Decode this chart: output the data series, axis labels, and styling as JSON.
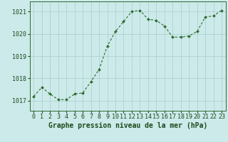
{
  "x": [
    0,
    1,
    2,
    3,
    4,
    5,
    6,
    7,
    8,
    9,
    10,
    11,
    12,
    13,
    14,
    15,
    16,
    17,
    18,
    19,
    20,
    21,
    22,
    23
  ],
  "y": [
    1017.2,
    1017.6,
    1017.3,
    1017.05,
    1017.05,
    1017.3,
    1017.35,
    1017.85,
    1018.4,
    1019.45,
    1020.1,
    1020.55,
    1021.0,
    1021.05,
    1020.65,
    1020.6,
    1020.35,
    1019.85,
    1019.85,
    1019.9,
    1020.1,
    1020.75,
    1020.8,
    1021.05
  ],
  "line_color": "#2d6a2d",
  "marker": "D",
  "marker_size": 2.0,
  "bg_color": "#cceaea",
  "grid_color": "#aacccc",
  "xlabel": "Graphe pression niveau de la mer (hPa)",
  "xlabel_color": "#1a4a1a",
  "xlabel_fontsize": 7.0,
  "tick_color": "#1a4a1a",
  "tick_fontsize": 6.0,
  "ytick_labels": [
    "1017",
    "1018",
    "1019",
    "1020",
    "1021"
  ],
  "ytick_values": [
    1017,
    1018,
    1019,
    1020,
    1021
  ],
  "ylim": [
    1016.55,
    1021.45
  ],
  "xlim": [
    -0.5,
    23.5
  ]
}
